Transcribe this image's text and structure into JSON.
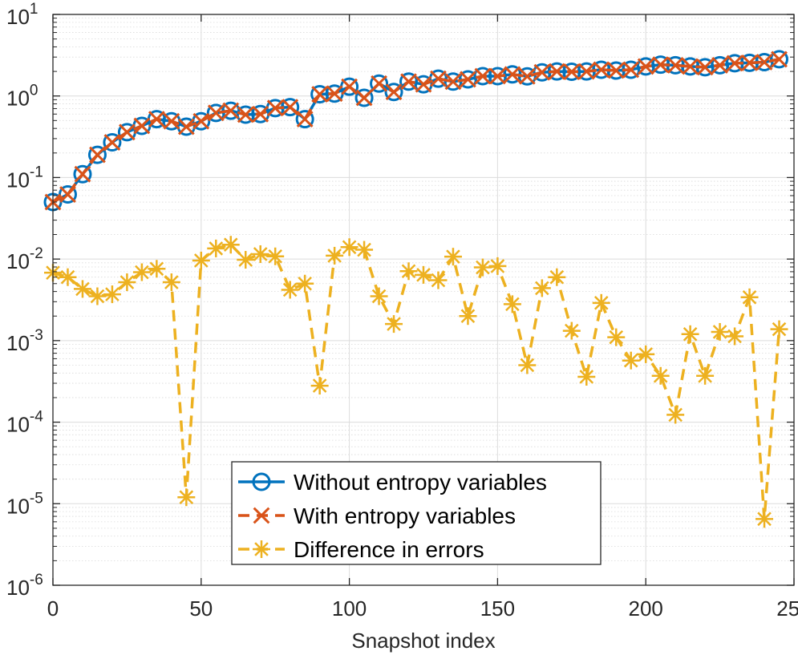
{
  "chart_data": {
    "type": "line",
    "title": "",
    "xlabel": "Snapshot index",
    "ylabel": "",
    "xlim": [
      0,
      250
    ],
    "ylim_exponent": [
      -6,
      1
    ],
    "yscale": "log",
    "grid": true,
    "minor_grid": true,
    "legend_position": "bottom-center",
    "x_ticks": [
      0,
      50,
      100,
      150,
      200,
      250
    ],
    "x_tick_labels": [
      "0",
      "50",
      "100",
      "150",
      "200",
      "250"
    ],
    "y_tick_exponents": [
      -6,
      -5,
      -4,
      -3,
      -2,
      -1,
      0,
      1
    ],
    "y_tick_base": "10",
    "y_tick_exponent_labels": [
      "-6",
      "-5",
      "-4",
      "-3",
      "-2",
      "-1",
      "0",
      "1"
    ],
    "x": [
      0,
      5,
      10,
      15,
      20,
      25,
      30,
      35,
      40,
      45,
      50,
      55,
      60,
      65,
      70,
      75,
      80,
      85,
      90,
      95,
      100,
      105,
      110,
      115,
      120,
      125,
      130,
      135,
      140,
      145,
      150,
      155,
      160,
      165,
      170,
      175,
      180,
      185,
      190,
      195,
      200,
      205,
      210,
      215,
      220,
      225,
      230,
      235,
      240,
      245
    ],
    "series": [
      {
        "name": "Without entropy variables",
        "color": "#0072BD",
        "marker": "circle",
        "line": "solid",
        "values": [
          0.05,
          0.062,
          0.11,
          0.19,
          0.27,
          0.36,
          0.43,
          0.52,
          0.49,
          0.42,
          0.49,
          0.62,
          0.66,
          0.59,
          0.6,
          0.71,
          0.73,
          0.52,
          1.05,
          1.07,
          1.3,
          0.95,
          1.42,
          1.12,
          1.5,
          1.39,
          1.63,
          1.5,
          1.6,
          1.75,
          1.75,
          1.84,
          1.74,
          1.95,
          2.0,
          1.98,
          2.0,
          2.1,
          2.05,
          2.1,
          2.3,
          2.42,
          2.38,
          2.3,
          2.25,
          2.38,
          2.52,
          2.55,
          2.6,
          2.82
        ]
      },
      {
        "name": "With entropy variables",
        "color": "#D95319",
        "marker": "x",
        "line": "dashed",
        "values": [
          0.05,
          0.062,
          0.11,
          0.19,
          0.27,
          0.36,
          0.43,
          0.52,
          0.49,
          0.42,
          0.49,
          0.62,
          0.66,
          0.59,
          0.6,
          0.71,
          0.73,
          0.52,
          1.05,
          1.07,
          1.3,
          0.95,
          1.42,
          1.12,
          1.5,
          1.39,
          1.63,
          1.5,
          1.6,
          1.75,
          1.75,
          1.84,
          1.74,
          1.95,
          2.0,
          1.98,
          2.0,
          2.1,
          2.05,
          2.1,
          2.3,
          2.42,
          2.38,
          2.3,
          2.25,
          2.38,
          2.52,
          2.55,
          2.6,
          2.82
        ]
      },
      {
        "name": "Difference in errors",
        "color": "#EDB120",
        "marker": "asterisk",
        "line": "dashed",
        "values": [
          0.0068,
          0.006,
          0.0043,
          0.0035,
          0.0037,
          0.0052,
          0.0069,
          0.0076,
          0.0052,
          1.2e-05,
          0.0096,
          0.0135,
          0.015,
          0.0098,
          0.0115,
          0.0108,
          0.0042,
          0.005,
          0.00028,
          0.011,
          0.014,
          0.013,
          0.0035,
          0.0016,
          0.0071,
          0.0064,
          0.0055,
          0.0107,
          0.002,
          0.0079,
          0.0082,
          0.0028,
          0.0005,
          0.0044,
          0.006,
          0.00132,
          0.00036,
          0.0029,
          0.0011,
          0.00057,
          0.00068,
          0.00037,
          0.000123,
          0.0012,
          0.00037,
          0.00128,
          0.00113,
          0.0034,
          6.5e-06,
          0.00138
        ]
      }
    ]
  }
}
